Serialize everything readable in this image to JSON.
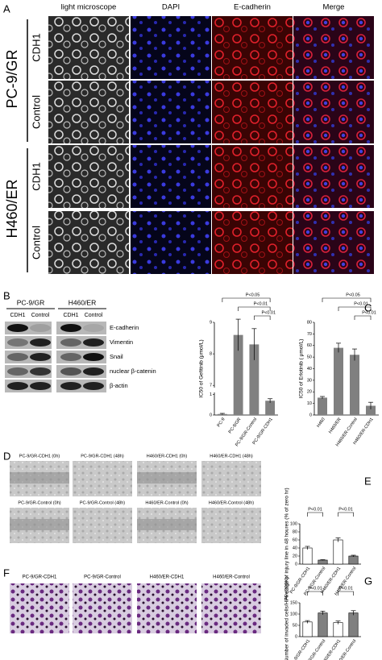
{
  "figure": {
    "panel_letters": [
      "A",
      "B",
      "C",
      "D",
      "E",
      "F",
      "G"
    ],
    "panel_a": {
      "columns": [
        "light microscope",
        "DAPI",
        "E-cadherin",
        "Merge"
      ],
      "groups": [
        "PC-9/GR",
        "H460/ER"
      ],
      "rows": [
        "CDH1",
        "Control",
        "CDH1",
        "Control"
      ]
    },
    "panel_b": {
      "groups": [
        "PC-9/GR",
        "H460/ER"
      ],
      "lanes": [
        "CDH1",
        "Control",
        "CDH1",
        "Control"
      ],
      "proteins": [
        "E-cadherin",
        "Vimentin",
        "Snail",
        "nuclear β-catenin",
        "β-actin"
      ]
    },
    "panel_d": {
      "labels": [
        "PC-9/GR-CDH1  (0h)",
        "PC-9/GR-CDH1  (48h)",
        "H460/ER-CDH1  (0h)",
        "H460/ER-CDH1  (48h)",
        "PC-9/GR-Control  (0h)",
        "PC-9/GR-Control  (48h)",
        "H460/ER-Control  (0h)",
        "H460/ER-Control  (48h)"
      ]
    },
    "panel_f": {
      "labels": [
        "PC-9/GR-CDH1",
        "PC-9/GR-Control",
        "H460/ER-CDH1",
        "H460/ER-Control"
      ]
    }
  },
  "chart_data": [
    {
      "type": "bar",
      "ylabel": "IC50 of Gefitinib (μmol/L)",
      "categories": [
        "PC-9",
        "PC-9/GR",
        "PC-9/GR-Control",
        "PC-9/GR-CDH1"
      ],
      "values": [
        0.05,
        8.6,
        8.3,
        0.7
      ],
      "errors": [
        0.03,
        0.5,
        0.5,
        0.1
      ],
      "color": "#808080",
      "ylim": [
        0,
        9
      ],
      "axis_break": [
        1,
        7
      ],
      "yticks": [
        0,
        1,
        7,
        8,
        9
      ],
      "annotations": [
        "P<0.05",
        "P<0.01",
        "P<0.01"
      ]
    },
    {
      "type": "bar",
      "ylabel": "IC50 of Erlotinib ( μmol/L)",
      "categories": [
        "H460",
        "H460/ER",
        "H460/ER-Control",
        "H460/ER-CDH1"
      ],
      "values": [
        15,
        58,
        52,
        8
      ],
      "errors": [
        1,
        4,
        5,
        3
      ],
      "color": "#808080",
      "ylim": [
        0,
        80
      ],
      "yticks": [
        0,
        10,
        20,
        30,
        40,
        50,
        60,
        70,
        80
      ],
      "annotations": [
        "P<0.05",
        "P<0.01",
        "P<0.01"
      ]
    },
    {
      "type": "bar",
      "ylabel": "Average of injury line in 48 houres (% of zero hr)",
      "categories": [
        "PC-9/GR-CDH1",
        "PC-9/GR-Control",
        "H460/ER-CDH1",
        "H460/ER-Control"
      ],
      "values": [
        40,
        10,
        60,
        20
      ],
      "errors": [
        4,
        1,
        5,
        2
      ],
      "colors": [
        "#ffffff",
        "#808080",
        "#ffffff",
        "#808080"
      ],
      "ylim": [
        0,
        100
      ],
      "yticks": [
        0,
        20,
        40,
        60,
        80,
        100
      ],
      "annotations": [
        "P<0.01",
        "P<0.01"
      ]
    },
    {
      "type": "bar",
      "ylabel": "Number of invaded cells/HPF (200X)",
      "categories": [
        "PC-9/GR-CDH1",
        "PC-9/GR-Control",
        "H460/ER-CDH1",
        "H460/ER-Control"
      ],
      "values": [
        65,
        105,
        62,
        105
      ],
      "errors": [
        6,
        8,
        7,
        10
      ],
      "colors": [
        "#ffffff",
        "#808080",
        "#ffffff",
        "#808080"
      ],
      "ylim": [
        0,
        150
      ],
      "yticks": [
        0,
        50,
        100,
        150
      ],
      "annotations": [
        "P<0.01",
        "P<0.01"
      ]
    }
  ]
}
